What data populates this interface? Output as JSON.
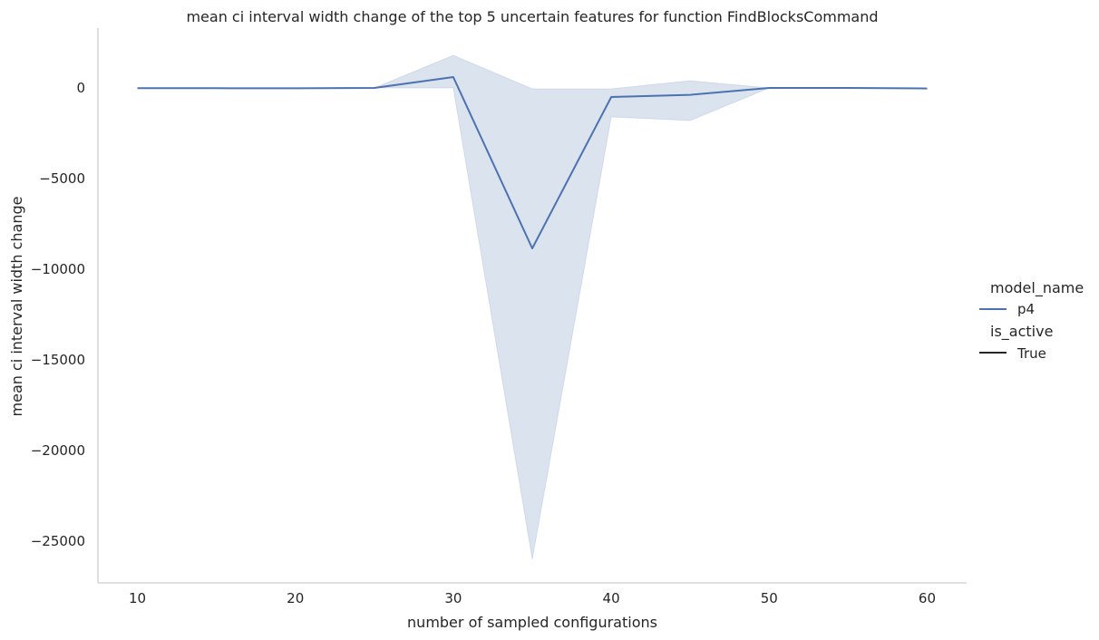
{
  "chart_data": {
    "type": "line",
    "title": "mean ci interval width change of the top 5 uncertain features for function FindBlocksCommand",
    "xlabel": "number of sampled configurations",
    "ylabel": "mean ci interval width change",
    "x": [
      10,
      15,
      20,
      25,
      30,
      35,
      40,
      45,
      50,
      55,
      60
    ],
    "xlim": [
      7.5,
      62.5
    ],
    "ylim": [
      -27300,
      3300
    ],
    "xticks": [
      10,
      20,
      30,
      40,
      50,
      60
    ],
    "xtick_labels": [
      "10",
      "20",
      "30",
      "40",
      "50",
      "60"
    ],
    "yticks": [
      0,
      -5000,
      -10000,
      -15000,
      -20000,
      -25000
    ],
    "ytick_labels": [
      "0",
      "−5000",
      "−10000",
      "−15000",
      "−20000",
      "−25000"
    ],
    "grid": false,
    "series": [
      {
        "name": "p4",
        "color": "#4c72b0",
        "values": [
          -15,
          -15,
          -20,
          0,
          600,
          -8850,
          -500,
          -380,
          0,
          0,
          -30
        ],
        "ci_lower": [
          -15,
          -15,
          -20,
          0,
          0,
          -26000,
          -1600,
          -1800,
          0,
          0,
          -30
        ],
        "ci_upper": [
          -15,
          -15,
          -20,
          0,
          1800,
          -50,
          -50,
          400,
          0,
          0,
          -30
        ]
      }
    ],
    "legend": {
      "placement": "right",
      "groups": [
        {
          "title": "model_name",
          "entries": [
            {
              "label": "p4",
              "color": "#4c72b0"
            }
          ]
        },
        {
          "title": "is_active",
          "entries": [
            {
              "label": "True",
              "color": "#262626"
            }
          ]
        }
      ]
    }
  }
}
